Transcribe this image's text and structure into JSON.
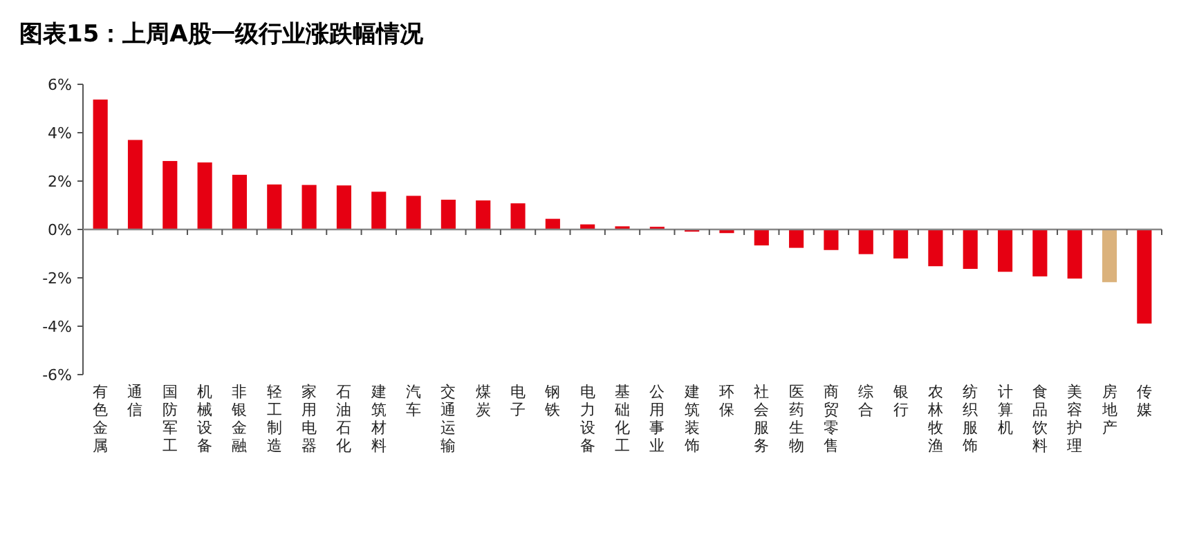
{
  "chart_data": {
    "type": "bar",
    "title": "图表15：上周A股一级行业涨跌幅情况",
    "categories": [
      "有色金属",
      "通信",
      "国防军工",
      "机械设备",
      "非银金融",
      "轻工制造",
      "家用电器",
      "石油石化",
      "建筑材料",
      "汽车",
      "交通运输",
      "煤炭",
      "电子",
      "钢铁",
      "电力设备",
      "基础化工",
      "公用事业",
      "建筑装饰",
      "环保",
      "社会服务",
      "医药生物",
      "商贸零售",
      "综合",
      "银行",
      "农林牧渔",
      "纺织服饰",
      "计算机",
      "食品饮料",
      "美容护理",
      "房地产",
      "传媒"
    ],
    "values": [
      5.37,
      3.7,
      2.83,
      2.77,
      2.26,
      1.86,
      1.84,
      1.82,
      1.56,
      1.39,
      1.23,
      1.2,
      1.08,
      0.44,
      0.21,
      0.13,
      0.11,
      -0.09,
      -0.15,
      -0.66,
      -0.76,
      -0.85,
      -1.02,
      -1.2,
      -1.52,
      -1.63,
      -1.75,
      -1.94,
      -2.03,
      -2.18,
      -3.89
    ],
    "colors": [
      "#e60012",
      "#e60012",
      "#e60012",
      "#e60012",
      "#e60012",
      "#e60012",
      "#e60012",
      "#e60012",
      "#e60012",
      "#e60012",
      "#e60012",
      "#e60012",
      "#e60012",
      "#e60012",
      "#e60012",
      "#e60012",
      "#e60012",
      "#e60012",
      "#e60012",
      "#e60012",
      "#e60012",
      "#e60012",
      "#e60012",
      "#e60012",
      "#e60012",
      "#e60012",
      "#e60012",
      "#e60012",
      "#e60012",
      "#dbb27c",
      "#e60012"
    ],
    "ylim": [
      -6,
      6
    ],
    "yticks": [
      {
        "value": 6,
        "label": "6%"
      },
      {
        "value": 4,
        "label": "4%"
      },
      {
        "value": 2,
        "label": "2%"
      },
      {
        "value": 0,
        "label": "0%"
      },
      {
        "value": -2,
        "label": "-2%"
      },
      {
        "value": -4,
        "label": "-4%"
      },
      {
        "value": -6,
        "label": "-6%"
      }
    ],
    "orientation": "vertical"
  }
}
